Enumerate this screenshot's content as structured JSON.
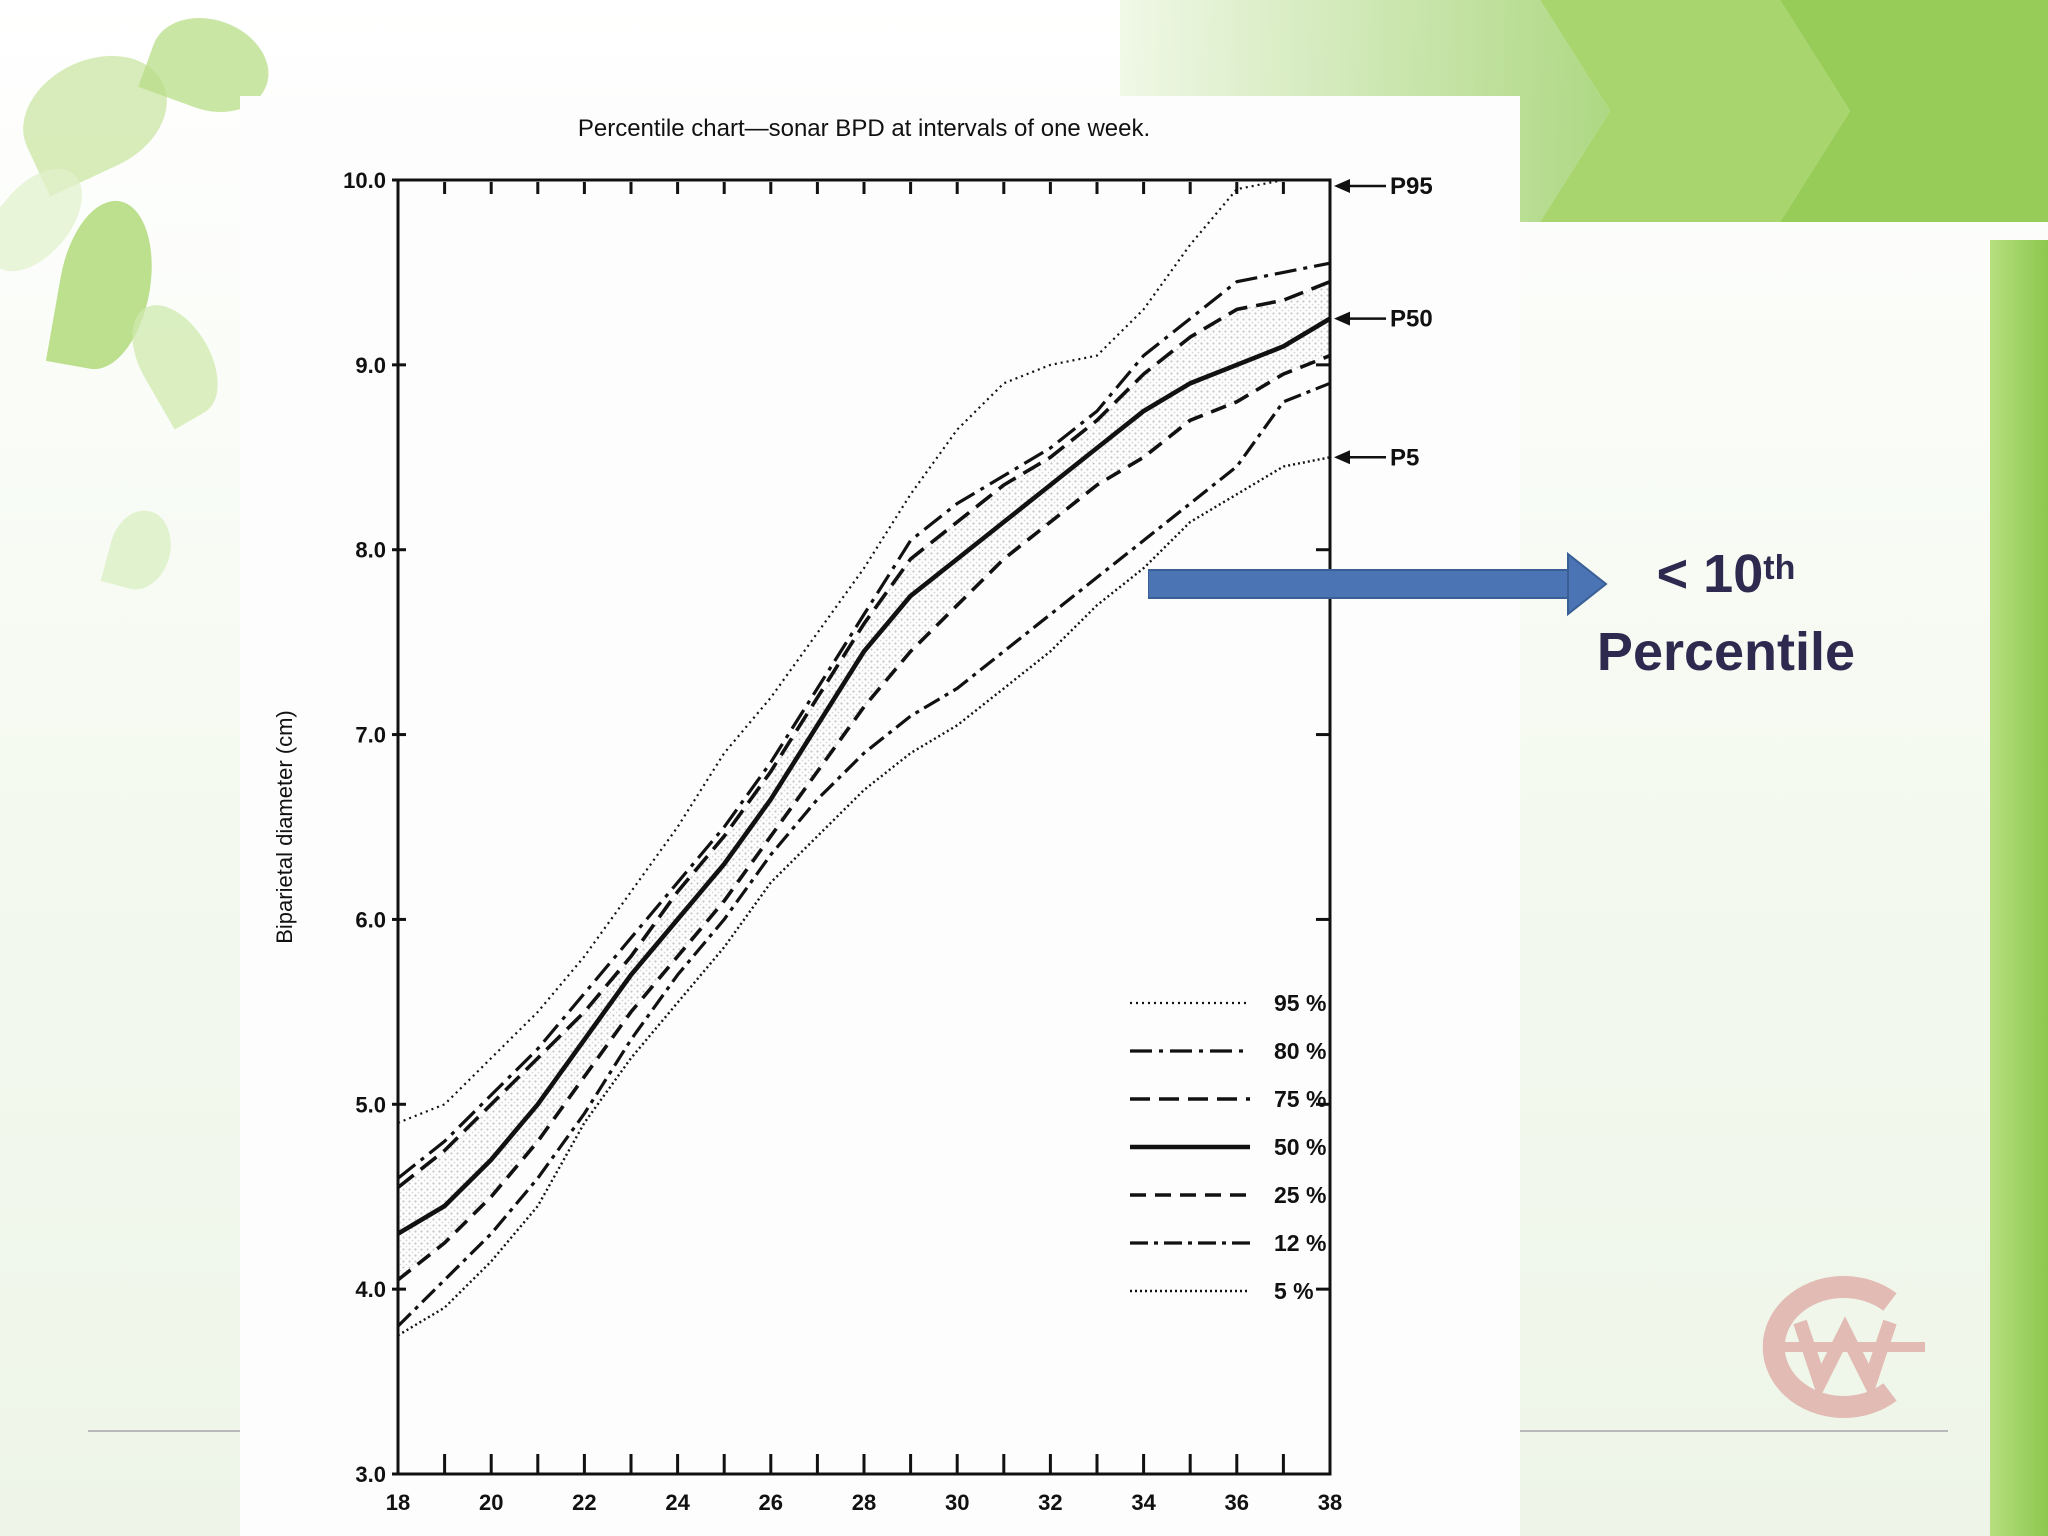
{
  "slide": {
    "annotation": {
      "prefix": "< 10",
      "superscript": "th",
      "line2": "Percentile"
    },
    "colors": {
      "accent_green": "#8cc84f",
      "arrow_blue": "#4a74b4",
      "annotation_text": "#2e2a4f",
      "logo_red": "#c0272d"
    }
  },
  "chart_data": {
    "type": "line",
    "title": "Percentile chart—sonar BPD at intervals of one week.",
    "xlabel": "",
    "ylabel": "Biparietal diameter (cm)",
    "xlim": [
      18,
      38
    ],
    "ylim": [
      3.0,
      10.0
    ],
    "x_ticks": [
      "18",
      "20",
      "22",
      "24",
      "26",
      "28",
      "30",
      "32",
      "34",
      "36",
      "38"
    ],
    "y_ticks": [
      "3.0",
      "4.0",
      "5.0",
      "6.0",
      "7.0",
      "8.0",
      "9.0",
      "10.0"
    ],
    "x": [
      18,
      19,
      20,
      21,
      22,
      23,
      24,
      25,
      26,
      27,
      28,
      29,
      30,
      31,
      32,
      33,
      34,
      35,
      36,
      37,
      38
    ],
    "series": [
      {
        "name": "95 %",
        "style": "dotted",
        "values": [
          4.9,
          5.0,
          5.25,
          5.5,
          5.8,
          6.15,
          6.5,
          6.9,
          7.2,
          7.55,
          7.9,
          8.3,
          8.65,
          8.9,
          9.0,
          9.05,
          9.3,
          9.65,
          9.95,
          10.0,
          10.0
        ]
      },
      {
        "name": "80 %",
        "style": "dashdot",
        "values": [
          4.6,
          4.8,
          5.05,
          5.3,
          5.6,
          5.9,
          6.2,
          6.5,
          6.85,
          7.25,
          7.65,
          8.05,
          8.25,
          8.4,
          8.55,
          8.75,
          9.05,
          9.25,
          9.45,
          9.5,
          9.55
        ]
      },
      {
        "name": "75 %",
        "style": "longdash",
        "values": [
          4.55,
          4.75,
          5.0,
          5.25,
          5.5,
          5.8,
          6.15,
          6.45,
          6.8,
          7.2,
          7.6,
          7.95,
          8.15,
          8.35,
          8.5,
          8.7,
          8.95,
          9.15,
          9.3,
          9.35,
          9.45
        ]
      },
      {
        "name": "50 %",
        "style": "solid",
        "values": [
          4.3,
          4.45,
          4.7,
          5.0,
          5.35,
          5.7,
          6.0,
          6.3,
          6.65,
          7.05,
          7.45,
          7.75,
          7.95,
          8.15,
          8.35,
          8.55,
          8.75,
          8.9,
          9.0,
          9.1,
          9.25
        ]
      },
      {
        "name": "25 %",
        "style": "dash",
        "values": [
          4.05,
          4.25,
          4.5,
          4.8,
          5.15,
          5.5,
          5.8,
          6.1,
          6.45,
          6.8,
          7.15,
          7.45,
          7.7,
          7.95,
          8.15,
          8.35,
          8.5,
          8.7,
          8.8,
          8.95,
          9.05
        ]
      },
      {
        "name": "12 %",
        "style": "dashdot2",
        "values": [
          3.8,
          4.05,
          4.3,
          4.6,
          4.95,
          5.35,
          5.7,
          6.0,
          6.35,
          6.65,
          6.9,
          7.1,
          7.25,
          7.45,
          7.65,
          7.85,
          8.05,
          8.25,
          8.45,
          8.8,
          8.9
        ]
      },
      {
        "name": "5 %",
        "style": "dotted2",
        "values": [
          3.75,
          3.9,
          4.15,
          4.45,
          4.9,
          5.25,
          5.55,
          5.85,
          6.2,
          6.45,
          6.7,
          6.9,
          7.05,
          7.25,
          7.45,
          7.7,
          7.9,
          8.15,
          8.3,
          8.45,
          8.5
        ]
      }
    ],
    "right_labels": [
      "P95",
      "P50",
      "P5"
    ],
    "legend": {
      "position": "bottom-right",
      "entries": [
        "95 %",
        "80 %",
        "75 %",
        "50 %",
        "25 %",
        "12 %",
        "5 %"
      ]
    },
    "grid": false
  }
}
